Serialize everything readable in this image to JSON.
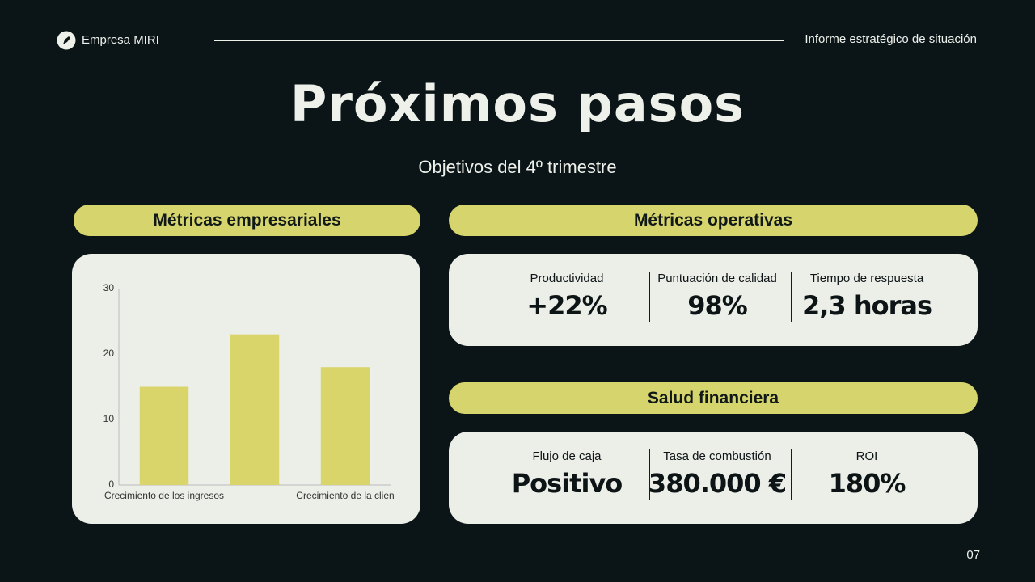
{
  "header": {
    "company": "Empresa MIRI",
    "report": "Informe estratégico de situación"
  },
  "title": "Próximos pasos",
  "subtitle": "Objetivos del 4º trimestre",
  "business_metrics": {
    "heading": "Métricas empresariales"
  },
  "operational_metrics": {
    "heading": "Métricas operativas",
    "items": [
      {
        "label": "Productividad",
        "value": "+22%"
      },
      {
        "label": "Puntuación de calidad",
        "value": "98%"
      },
      {
        "label": "Tiempo de respuesta",
        "value": "2,3 horas"
      }
    ]
  },
  "financial_health": {
    "heading": "Salud financiera",
    "items": [
      {
        "label": "Flujo de caja",
        "value": "Positivo"
      },
      {
        "label": "Tasa de combustión",
        "value": "380.000 €"
      },
      {
        "label": "ROI",
        "value": "180%"
      }
    ]
  },
  "page_number": "07",
  "chart_data": {
    "type": "bar",
    "categories": [
      "Crecimiento de los ingresos",
      null,
      "Crecimiento de la clien"
    ],
    "values": [
      15,
      23,
      18
    ],
    "color": "#d9d56b",
    "ylim": [
      0,
      30
    ],
    "yticks": [
      0,
      10,
      20,
      30
    ],
    "grid": false
  }
}
